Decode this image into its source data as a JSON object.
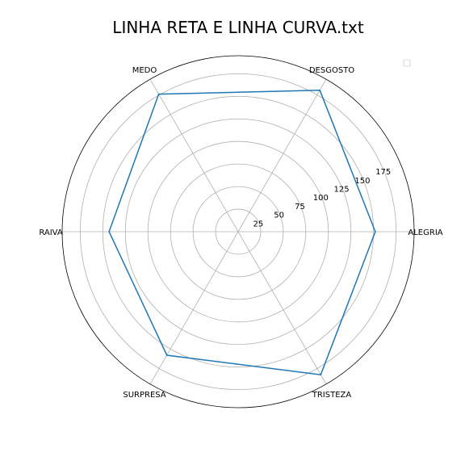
{
  "chart_data": {
    "type": "radar",
    "title": "LINHA RETA E LINHA CURVA.txt",
    "categories": [
      "ALEGRIA",
      "DESGOSTO",
      "MEDO",
      "RAIVA",
      "SURPRESA",
      "TRISTEZA"
    ],
    "series": [
      {
        "values": [
          152,
          181,
          176,
          143,
          158,
          183
        ]
      }
    ],
    "radial_ticks": [
      25,
      50,
      75,
      100,
      125,
      150,
      175
    ],
    "rlim": [
      0,
      195
    ],
    "grid": true,
    "legend": "top-right",
    "colors": {
      "series": "#1f77b4"
    }
  }
}
